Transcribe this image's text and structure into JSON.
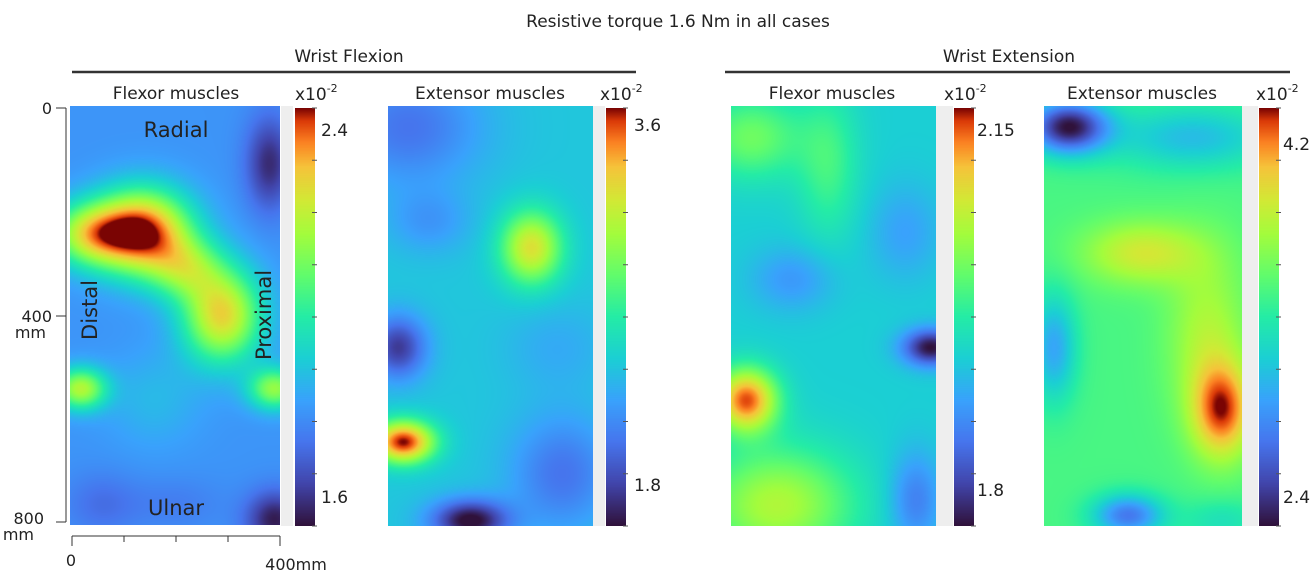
{
  "figure_title": "Resistive torque 1.6 Nm in all cases",
  "groups": [
    {
      "title": "Wrist Flexion"
    },
    {
      "title": "Wrist Extension"
    }
  ],
  "chart_data": [
    {
      "type": "heatmap",
      "group": "Wrist Flexion",
      "title": "Flexor muscles",
      "multiplier": "x10",
      "multiplier_exp": "-2",
      "colorbar_ticks": [
        "2.4",
        "1.6"
      ],
      "value_range": [
        1.5,
        2.5
      ],
      "x_ticks": [
        "0",
        "400mm"
      ],
      "y_ticks": [
        "0",
        "400",
        "800"
      ],
      "y_unit": "mm",
      "xlim": [
        0,
        400
      ],
      "ylim": [
        0,
        800
      ],
      "annotations": {
        "top": "Radial",
        "bottom": "Ulnar",
        "left": "Distal",
        "right": "Proximal"
      },
      "background": 0.27,
      "hotspots": [
        {
          "x": 140,
          "y": 240,
          "sx": 90,
          "sy": 80,
          "v": 0.7
        },
        {
          "x": 40,
          "y": 245,
          "sx": 80,
          "sy": 60,
          "v": 0.45
        },
        {
          "x": 290,
          "y": 400,
          "sx": 75,
          "sy": 90,
          "v": 0.55
        },
        {
          "x": 220,
          "y": 310,
          "sx": 70,
          "sy": 60,
          "v": 0.3
        },
        {
          "x": 20,
          "y": 540,
          "sx": 50,
          "sy": 40,
          "v": 0.45
        },
        {
          "x": 390,
          "y": 540,
          "sx": 50,
          "sy": 40,
          "v": 0.4
        },
        {
          "x": 160,
          "y": 560,
          "sx": 90,
          "sy": 90,
          "v": 0.08
        },
        {
          "x": 380,
          "y": 110,
          "sx": 45,
          "sy": 90,
          "v": -0.22
        },
        {
          "x": 390,
          "y": 790,
          "sx": 55,
          "sy": 55,
          "v": -0.25
        },
        {
          "x": 60,
          "y": 760,
          "sx": 70,
          "sy": 60,
          "v": -0.08
        },
        {
          "x": 200,
          "y": 760,
          "sx": 90,
          "sy": 50,
          "v": -0.05
        }
      ]
    },
    {
      "type": "heatmap",
      "group": "Wrist Flexion",
      "title": "Extensor muscles",
      "multiplier": "x10",
      "multiplier_exp": "-2",
      "colorbar_ticks": [
        "3.6",
        "1.8"
      ],
      "value_range": [
        1.6,
        3.8
      ],
      "xlim": [
        0,
        400
      ],
      "ylim": [
        0,
        800
      ],
      "background": 0.38,
      "hotspots": [
        {
          "x": 40,
          "y": 40,
          "sx": 140,
          "sy": 110,
          "v": -0.18
        },
        {
          "x": 280,
          "y": 270,
          "sx": 60,
          "sy": 70,
          "v": 0.42
        },
        {
          "x": 20,
          "y": 460,
          "sx": 55,
          "sy": 60,
          "v": -0.3
        },
        {
          "x": 30,
          "y": 640,
          "sx": 60,
          "sy": 40,
          "v": 0.62
        },
        {
          "x": 160,
          "y": 790,
          "sx": 75,
          "sy": 40,
          "v": -0.4
        },
        {
          "x": 340,
          "y": 700,
          "sx": 100,
          "sy": 110,
          "v": -0.18
        },
        {
          "x": 330,
          "y": 460,
          "sx": 100,
          "sy": 80,
          "v": -0.06
        },
        {
          "x": 80,
          "y": 220,
          "sx": 80,
          "sy": 60,
          "v": -0.1
        }
      ]
    },
    {
      "type": "heatmap",
      "group": "Wrist Extension",
      "title": "Flexor muscles",
      "multiplier": "x10",
      "multiplier_exp": "-2",
      "colorbar_ticks": [
        "2.15",
        "1.8"
      ],
      "value_range": [
        1.75,
        2.2
      ],
      "xlim": [
        0,
        400
      ],
      "ylim": [
        0,
        800
      ],
      "background": 0.4,
      "hotspots": [
        {
          "x": 40,
          "y": 60,
          "sx": 100,
          "sy": 80,
          "v": 0.22
        },
        {
          "x": 190,
          "y": 110,
          "sx": 60,
          "sy": 140,
          "v": 0.15
        },
        {
          "x": 30,
          "y": 560,
          "sx": 60,
          "sy": 60,
          "v": 0.55
        },
        {
          "x": 90,
          "y": 760,
          "sx": 150,
          "sy": 110,
          "v": 0.32
        },
        {
          "x": 390,
          "y": 460,
          "sx": 55,
          "sy": 35,
          "v": -0.4
        },
        {
          "x": 360,
          "y": 750,
          "sx": 50,
          "sy": 90,
          "v": -0.18
        },
        {
          "x": 340,
          "y": 240,
          "sx": 70,
          "sy": 90,
          "v": -0.1
        },
        {
          "x": 120,
          "y": 330,
          "sx": 80,
          "sy": 60,
          "v": -0.12
        }
      ]
    },
    {
      "type": "heatmap",
      "group": "Wrist Extension",
      "title": "Extensor muscles",
      "multiplier": "x10",
      "multiplier_exp": "-2",
      "colorbar_ticks": [
        "4.2",
        "2.4"
      ],
      "value_range": [
        2.0,
        4.5
      ],
      "xlim": [
        0,
        400
      ],
      "ylim": [
        0,
        800
      ],
      "background": 0.56,
      "hotspots": [
        {
          "x": 50,
          "y": 40,
          "sx": 80,
          "sy": 50,
          "v": -0.55
        },
        {
          "x": 300,
          "y": 60,
          "sx": 160,
          "sy": 60,
          "v": -0.2
        },
        {
          "x": 200,
          "y": 280,
          "sx": 120,
          "sy": 60,
          "v": 0.22
        },
        {
          "x": 360,
          "y": 580,
          "sx": 60,
          "sy": 90,
          "v": 0.38
        },
        {
          "x": 20,
          "y": 460,
          "sx": 45,
          "sy": 100,
          "v": -0.25
        },
        {
          "x": 170,
          "y": 780,
          "sx": 70,
          "sy": 40,
          "v": -0.35
        },
        {
          "x": 330,
          "y": 440,
          "sx": 80,
          "sy": 160,
          "v": 0.16
        },
        {
          "x": 360,
          "y": 790,
          "sx": 80,
          "sy": 40,
          "v": -0.1
        }
      ]
    }
  ]
}
